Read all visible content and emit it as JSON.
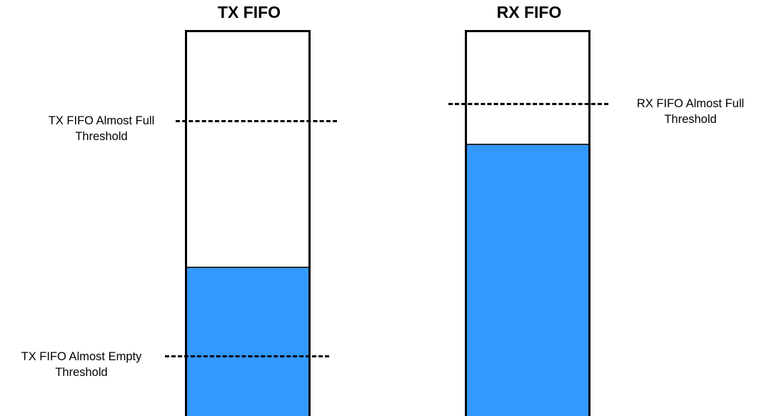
{
  "colors": {
    "fill": "#3399ff",
    "outline": "#000000"
  },
  "tx": {
    "title": "TX FIFO",
    "fill_fraction": 0.39,
    "almost_full": {
      "line1": "TX FIFO Almost Full",
      "line2": "Threshold"
    },
    "almost_empty": {
      "line1": "TX FIFO Almost Empty",
      "line2": "Threshold"
    }
  },
  "rx": {
    "title": "RX FIFO",
    "fill_fraction": 0.71,
    "almost_full": {
      "line1": "RX FIFO Almost Full",
      "line2": "Threshold"
    }
  }
}
